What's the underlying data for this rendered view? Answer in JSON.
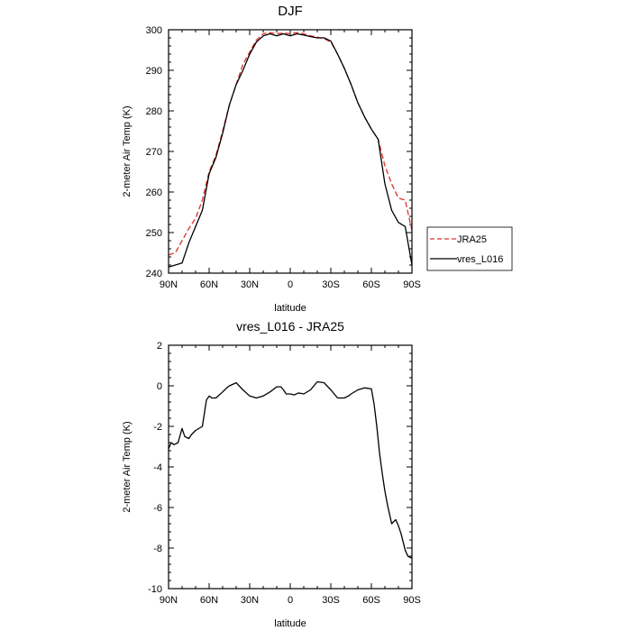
{
  "chart_data": [
    {
      "type": "line",
      "title": "DJF",
      "xlabel": "latitude",
      "ylabel": "2-meter Air Temp (K)",
      "xlim": [
        -90,
        90
      ],
      "ylim": [
        240,
        300
      ],
      "x_ticks": [
        -90,
        -60,
        -30,
        0,
        30,
        60,
        90
      ],
      "x_tick_labels": [
        "90N",
        "60N",
        "30N",
        "0",
        "30S",
        "60S",
        "90S"
      ],
      "y_ticks": [
        240,
        250,
        260,
        270,
        280,
        290,
        300
      ],
      "y_tick_labels": [
        "240",
        "250",
        "260",
        "270",
        "280",
        "290",
        "300"
      ],
      "legend_position": "right",
      "series": [
        {
          "name": "JRA25",
          "color": "#e0302a",
          "dash": "dashed",
          "x": [
            -90,
            -85,
            -80,
            -75,
            -70,
            -65,
            -60,
            -55,
            -50,
            -45,
            -40,
            -35,
            -30,
            -25,
            -20,
            -15,
            -10,
            -5,
            0,
            5,
            10,
            15,
            20,
            25,
            30,
            35,
            40,
            45,
            50,
            55,
            60,
            65,
            70,
            75,
            80,
            85,
            90
          ],
          "y": [
            244.5,
            245.0,
            248.0,
            251.0,
            253.5,
            258.0,
            265.0,
            269.0,
            275.0,
            281.5,
            286.5,
            291.5,
            294.5,
            297.5,
            299.0,
            299.3,
            299.0,
            299.2,
            299.0,
            299.3,
            299.0,
            298.5,
            298.2,
            297.8,
            297.0,
            294.0,
            290.5,
            286.5,
            282.0,
            278.5,
            275.5,
            273.0,
            266.5,
            262.0,
            258.5,
            258.0,
            250.5
          ]
        },
        {
          "name": "vres_L016",
          "color": "#000000",
          "dash": "solid",
          "x": [
            -90,
            -85,
            -80,
            -75,
            -70,
            -65,
            -60,
            -55,
            -50,
            -45,
            -40,
            -35,
            -30,
            -25,
            -20,
            -15,
            -10,
            -5,
            0,
            5,
            10,
            15,
            20,
            25,
            30,
            35,
            40,
            45,
            50,
            55,
            60,
            65,
            70,
            75,
            80,
            85,
            90
          ],
          "y": [
            241.5,
            242.0,
            242.5,
            247.5,
            251.5,
            255.5,
            264.5,
            268.5,
            274.5,
            281.5,
            286.5,
            290.0,
            294.0,
            297.0,
            298.5,
            299.0,
            298.5,
            299.0,
            298.5,
            299.0,
            298.7,
            298.3,
            298.0,
            298.0,
            297.2,
            294.0,
            290.5,
            286.5,
            282.0,
            278.5,
            275.5,
            273.0,
            262.0,
            255.5,
            252.5,
            251.5,
            242.0
          ]
        }
      ]
    },
    {
      "type": "line",
      "title": "vres_L016 - JRA25",
      "xlabel": "latitude",
      "ylabel": "2-meter Air Temp (K)",
      "xlim": [
        -90,
        90
      ],
      "ylim": [
        -10,
        2
      ],
      "x_ticks": [
        -90,
        -60,
        -30,
        0,
        30,
        60,
        90
      ],
      "x_tick_labels": [
        "90N",
        "60N",
        "30N",
        "0",
        "30S",
        "60S",
        "90S"
      ],
      "y_ticks": [
        -10,
        -8,
        -6,
        -4,
        -2,
        0,
        2
      ],
      "y_tick_labels": [
        "-10",
        "-8",
        "-6",
        "-4",
        "-2",
        "0",
        "2"
      ],
      "series": [
        {
          "color": "#000000",
          "dash": "solid",
          "x": [
            -90,
            -88,
            -86,
            -83,
            -80,
            -78,
            -75,
            -73,
            -70,
            -65,
            -62,
            -60,
            -58,
            -55,
            -50,
            -47,
            -45,
            -40,
            -35,
            -30,
            -25,
            -20,
            -15,
            -10,
            -7,
            -5,
            -3,
            0,
            3,
            6,
            10,
            15,
            20,
            25,
            30,
            35,
            40,
            43,
            45,
            50,
            55,
            60,
            62,
            64,
            66,
            68,
            70,
            72,
            75,
            78,
            80,
            82,
            85,
            87,
            90
          ],
          "y": [
            -3.1,
            -2.8,
            -2.9,
            -2.8,
            -2.1,
            -2.5,
            -2.6,
            -2.4,
            -2.2,
            -2.0,
            -0.7,
            -0.5,
            -0.6,
            -0.6,
            -0.3,
            -0.1,
            0.0,
            0.15,
            -0.2,
            -0.5,
            -0.6,
            -0.5,
            -0.3,
            -0.05,
            -0.05,
            -0.2,
            -0.4,
            -0.4,
            -0.45,
            -0.35,
            -0.4,
            -0.2,
            0.2,
            0.15,
            -0.2,
            -0.6,
            -0.6,
            -0.5,
            -0.4,
            -0.2,
            -0.1,
            -0.15,
            -0.9,
            -2.0,
            -3.3,
            -4.3,
            -5.2,
            -5.9,
            -6.8,
            -6.6,
            -6.9,
            -7.3,
            -8.1,
            -8.4,
            -8.5
          ]
        }
      ]
    }
  ]
}
